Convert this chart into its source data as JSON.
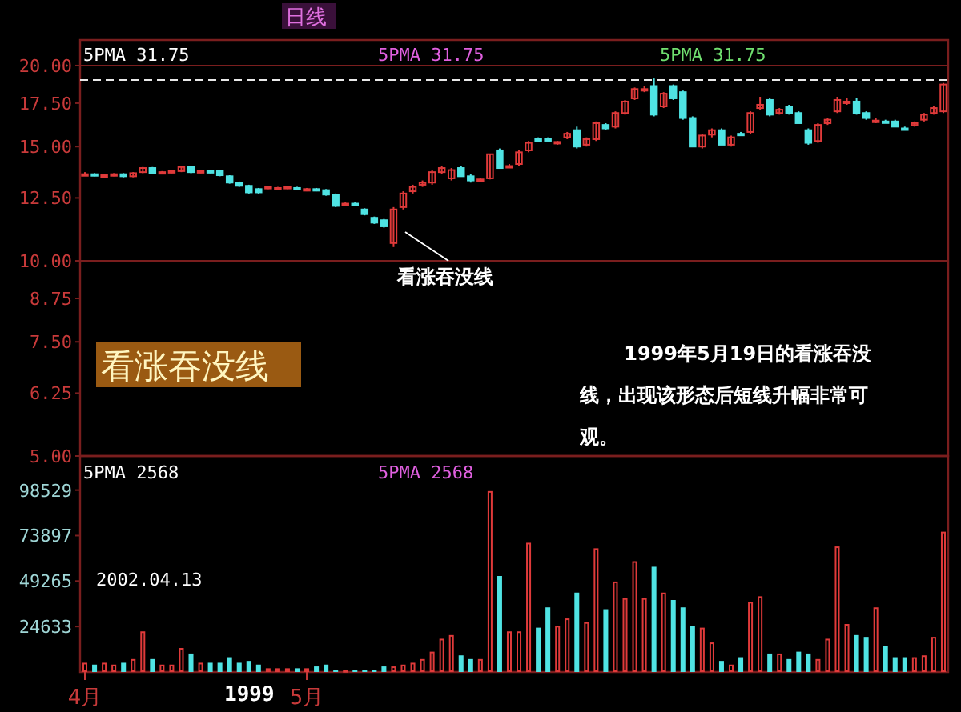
{
  "chart_data": [
    {
      "type": "candlestick",
      "title": "日线",
      "categories": [
        null,
        null,
        null,
        null,
        null,
        null,
        null,
        null,
        null,
        null,
        null,
        null,
        null,
        null,
        null,
        null,
        null,
        null,
        null,
        null,
        null,
        null,
        null,
        null,
        null,
        null,
        null,
        null,
        null,
        null,
        null,
        null,
        null,
        null,
        null,
        null,
        null,
        null,
        null,
        null,
        null,
        null,
        null,
        null,
        null,
        null,
        null,
        null,
        null,
        null,
        null,
        null,
        null,
        null,
        null,
        null,
        null,
        null,
        null,
        null,
        null,
        null,
        null,
        null,
        null,
        null,
        null,
        null,
        null,
        null,
        null,
        null,
        null,
        null,
        null,
        null,
        null,
        null,
        null,
        null,
        null,
        null,
        null,
        null,
        null,
        null,
        null,
        null,
        null,
        null
      ],
      "ohlc": [
        [
          13.6,
          13.7,
          13.55,
          13.6
        ],
        [
          13.6,
          13.65,
          13.5,
          13.55
        ],
        [
          13.55,
          13.6,
          13.5,
          13.55
        ],
        [
          13.55,
          13.65,
          13.5,
          13.6
        ],
        [
          13.6,
          13.65,
          13.45,
          13.5
        ],
        [
          13.5,
          13.7,
          13.45,
          13.65
        ],
        [
          13.7,
          13.95,
          13.65,
          13.9
        ],
        [
          13.9,
          13.95,
          13.6,
          13.65
        ],
        [
          13.65,
          13.75,
          13.6,
          13.7
        ],
        [
          13.7,
          13.8,
          13.65,
          13.75
        ],
        [
          13.75,
          14.0,
          13.7,
          13.95
        ],
        [
          13.95,
          14.0,
          13.65,
          13.7
        ],
        [
          13.7,
          13.8,
          13.65,
          13.75
        ],
        [
          13.75,
          13.8,
          13.65,
          13.7
        ],
        [
          13.75,
          13.8,
          13.5,
          13.55
        ],
        [
          13.5,
          13.55,
          13.15,
          13.2
        ],
        [
          13.2,
          13.25,
          13.0,
          13.05
        ],
        [
          13.05,
          13.1,
          12.7,
          12.75
        ],
        [
          12.9,
          12.95,
          12.7,
          12.75
        ],
        [
          12.95,
          13.0,
          12.9,
          13.0
        ],
        [
          12.95,
          13.0,
          12.9,
          12.95
        ],
        [
          12.95,
          13.05,
          12.9,
          13.0
        ],
        [
          12.95,
          13.0,
          12.85,
          12.9
        ],
        [
          12.85,
          12.95,
          12.8,
          12.9
        ],
        [
          12.9,
          12.95,
          12.8,
          12.85
        ],
        [
          12.85,
          12.9,
          12.6,
          12.65
        ],
        [
          12.65,
          12.7,
          12.1,
          12.15
        ],
        [
          12.2,
          12.3,
          12.15,
          12.25
        ],
        [
          12.25,
          12.3,
          12.15,
          12.2
        ],
        [
          12.0,
          12.05,
          11.75,
          11.8
        ],
        [
          11.65,
          11.7,
          11.4,
          11.45
        ],
        [
          11.55,
          11.6,
          11.25,
          11.3
        ],
        [
          10.65,
          12.1,
          10.5,
          12.0
        ],
        [
          12.1,
          12.8,
          12.0,
          12.7
        ],
        [
          12.8,
          13.1,
          12.7,
          13.0
        ],
        [
          13.1,
          13.3,
          13.0,
          13.2
        ],
        [
          13.2,
          13.8,
          13.1,
          13.7
        ],
        [
          13.7,
          14.0,
          13.6,
          13.9
        ],
        [
          13.4,
          13.9,
          13.3,
          13.8
        ],
        [
          13.9,
          14.0,
          13.5,
          13.5
        ],
        [
          13.5,
          13.6,
          13.2,
          13.3
        ],
        [
          13.35,
          13.4,
          13.3,
          13.35
        ],
        [
          13.4,
          14.6,
          13.35,
          14.6
        ],
        [
          14.8,
          14.9,
          13.9,
          13.9
        ],
        [
          14.0,
          14.1,
          13.9,
          14.0
        ],
        [
          14.1,
          14.8,
          14.0,
          14.7
        ],
        [
          14.8,
          15.3,
          14.7,
          15.2
        ],
        [
          15.4,
          15.5,
          15.3,
          15.3
        ],
        [
          15.4,
          15.5,
          15.3,
          15.35
        ],
        [
          15.2,
          15.3,
          15.1,
          15.25
        ],
        [
          15.5,
          15.8,
          15.4,
          15.7
        ],
        [
          15.9,
          16.1,
          14.9,
          15.0
        ],
        [
          15.1,
          15.5,
          15.0,
          15.4
        ],
        [
          15.4,
          16.4,
          15.3,
          16.3
        ],
        [
          16.2,
          16.3,
          15.9,
          16.0
        ],
        [
          16.1,
          17.0,
          16.0,
          16.9
        ],
        [
          16.9,
          17.7,
          16.8,
          17.6
        ],
        [
          17.8,
          18.5,
          17.7,
          18.4
        ],
        [
          18.3,
          18.6,
          18.2,
          18.4
        ],
        [
          18.6,
          19.1,
          16.7,
          16.8
        ],
        [
          17.3,
          18.2,
          17.2,
          18.1
        ],
        [
          18.6,
          18.7,
          17.7,
          17.8
        ],
        [
          18.2,
          18.3,
          16.5,
          16.6
        ],
        [
          16.6,
          16.7,
          15.0,
          15.0
        ],
        [
          15.0,
          15.7,
          14.9,
          15.6
        ],
        [
          15.65,
          16.0,
          15.5,
          15.9
        ],
        [
          15.9,
          16.0,
          15.1,
          15.1
        ],
        [
          15.1,
          15.6,
          15.0,
          15.5
        ],
        [
          15.7,
          15.8,
          15.6,
          15.65
        ],
        [
          15.8,
          17.0,
          15.7,
          16.9
        ],
        [
          17.2,
          17.9,
          17.1,
          17.4
        ],
        [
          17.7,
          17.8,
          16.7,
          16.8
        ],
        [
          16.9,
          17.2,
          16.8,
          17.1
        ],
        [
          17.3,
          17.4,
          16.8,
          16.9
        ],
        [
          16.9,
          17.0,
          16.3,
          16.3
        ],
        [
          15.9,
          16.0,
          15.1,
          15.2
        ],
        [
          15.3,
          16.3,
          15.2,
          16.2
        ],
        [
          16.3,
          16.6,
          16.2,
          16.5
        ],
        [
          17.0,
          17.9,
          16.9,
          17.7
        ],
        [
          17.5,
          17.8,
          17.4,
          17.6
        ],
        [
          17.6,
          17.8,
          16.8,
          16.9
        ],
        [
          16.9,
          17.0,
          16.5,
          16.6
        ],
        [
          16.4,
          16.6,
          16.3,
          16.45
        ],
        [
          16.4,
          16.5,
          16.3,
          16.35
        ],
        [
          16.4,
          16.5,
          16.1,
          16.1
        ],
        [
          16.0,
          16.1,
          15.9,
          15.95
        ],
        [
          16.2,
          16.4,
          16.1,
          16.3
        ],
        [
          16.5,
          16.9,
          16.4,
          16.8
        ],
        [
          16.9,
          17.3,
          16.8,
          17.2
        ],
        [
          17.0,
          18.8,
          16.9,
          18.7
        ]
      ],
      "colors": [
        "#e03a3a",
        "#4fe3e3",
        "#e03a3a",
        "#e03a3a",
        "#4fe3e3",
        "#e03a3a",
        "#e03a3a",
        "#4fe3e3",
        "#e03a3a",
        "#e03a3a",
        "#e03a3a",
        "#4fe3e3",
        "#e03a3a",
        "#4fe3e3",
        "#4fe3e3",
        "#4fe3e3",
        "#4fe3e3",
        "#4fe3e3",
        "#4fe3e3",
        "#e03a3a",
        "#e03a3a",
        "#e03a3a",
        "#4fe3e3",
        "#e03a3a",
        "#4fe3e3",
        "#4fe3e3",
        "#4fe3e3",
        "#e03a3a",
        "#4fe3e3",
        "#4fe3e3",
        "#4fe3e3",
        "#4fe3e3",
        "#e03a3a",
        "#e03a3a",
        "#e03a3a",
        "#e03a3a",
        "#e03a3a",
        "#e03a3a",
        "#e03a3a",
        "#4fe3e3",
        "#4fe3e3",
        "#e03a3a",
        "#e03a3a",
        "#4fe3e3",
        "#e03a3a",
        "#e03a3a",
        "#e03a3a",
        "#4fe3e3",
        "#4fe3e3",
        "#e03a3a",
        "#e03a3a",
        "#4fe3e3",
        "#e03a3a",
        "#e03a3a",
        "#4fe3e3",
        "#e03a3a",
        "#e03a3a",
        "#e03a3a",
        "#e03a3a",
        "#4fe3e3",
        "#e03a3a",
        "#4fe3e3",
        "#4fe3e3",
        "#4fe3e3",
        "#e03a3a",
        "#e03a3a",
        "#4fe3e3",
        "#e03a3a",
        "#4fe3e3",
        "#e03a3a",
        "#e03a3a",
        "#4fe3e3",
        "#e03a3a",
        "#4fe3e3",
        "#4fe3e3",
        "#4fe3e3",
        "#e03a3a",
        "#e03a3a",
        "#e03a3a",
        "#e03a3a",
        "#4fe3e3",
        "#4fe3e3",
        "#e03a3a",
        "#4fe3e3",
        "#4fe3e3",
        "#4fe3e3",
        "#e03a3a",
        "#e03a3a",
        "#e03a3a",
        "#e03a3a"
      ],
      "log": true,
      "ylim": [
        5,
        21.9
      ],
      "yticks": [
        {
          "value": 5,
          "label": "5.00"
        },
        {
          "value": 6.25,
          "label": "6.25"
        },
        {
          "value": 7.5,
          "label": "7.50"
        },
        {
          "value": 8.75,
          "label": "8.75"
        },
        {
          "value": 10,
          "label": "10.00"
        },
        {
          "value": 12.5,
          "label": "12.50"
        },
        {
          "value": 15,
          "label": "15.00"
        },
        {
          "value": 17.5,
          "label": "17.50"
        },
        {
          "value": 20,
          "label": "20.00"
        }
      ],
      "tick_labels": "y",
      "ref_lines": [
        {
          "axis": "y",
          "value": 20,
          "color": "#7a1e1e",
          "line_style": "solid"
        },
        {
          "axis": "y",
          "value": 10,
          "color": "#7a1e1e",
          "line_style": "solid"
        },
        {
          "axis": "y",
          "value": 19.0,
          "color": "#e8e8e8",
          "line_style": "dashed"
        }
      ],
      "annotations": [
        "5PMA 31.75",
        "5PMA 31.75",
        "5PMA 31.75",
        "看涨吞没线",
        "看涨吞没线",
        "1999年5月19日的看涨吞没线，出现该形态后短线升幅非常可观。"
      ]
    },
    {
      "type": "bar",
      "categories": [
        "4月",
        null,
        null,
        null,
        null,
        null,
        null,
        null,
        null,
        null,
        null,
        null,
        null,
        null,
        null,
        null,
        null,
        null,
        null,
        null,
        null,
        null,
        null,
        "5月",
        null,
        null,
        null,
        null,
        null,
        null,
        null,
        null,
        null,
        null,
        null,
        null,
        null,
        null,
        null,
        null,
        null,
        null,
        null,
        null,
        null,
        null,
        null,
        null,
        null,
        null,
        null,
        null,
        null,
        null,
        null,
        null,
        null,
        null,
        null,
        null,
        null,
        null,
        null,
        null,
        null,
        null,
        null,
        null,
        null,
        null,
        null,
        null,
        null,
        null,
        null,
        null,
        null,
        null,
        null,
        null,
        null,
        null,
        null,
        null,
        null,
        null,
        null,
        null,
        null,
        null
      ],
      "values": [
        5000,
        4000,
        5000,
        4000,
        5000,
        7000,
        22000,
        7000,
        4000,
        4000,
        13000,
        10000,
        5000,
        5000,
        5000,
        8000,
        5000,
        6000,
        4000,
        2000,
        2000,
        2000,
        2000,
        2000,
        3000,
        4000,
        1000,
        1000,
        1000,
        1000,
        1000,
        3000,
        3000,
        4000,
        5000,
        7000,
        11000,
        18000,
        20000,
        9000,
        7000,
        7000,
        98000,
        52000,
        22000,
        22000,
        70000,
        24000,
        35000,
        25000,
        29000,
        43000,
        27000,
        67000,
        34000,
        49000,
        40000,
        60000,
        40000,
        57000,
        43000,
        39000,
        35000,
        25000,
        24000,
        16000,
        6000,
        4000,
        8000,
        38000,
        41000,
        10000,
        10000,
        7000,
        11000,
        10000,
        7000,
        18000,
        68000,
        26000,
        20000,
        19000,
        35000,
        14000,
        8000,
        8000,
        8000,
        9000,
        19000,
        76000
      ],
      "colors": [
        "#e03a3a",
        "#4fe3e3",
        "#e03a3a",
        "#e03a3a",
        "#4fe3e3",
        "#e03a3a",
        "#e03a3a",
        "#4fe3e3",
        "#e03a3a",
        "#e03a3a",
        "#e03a3a",
        "#4fe3e3",
        "#e03a3a",
        "#4fe3e3",
        "#4fe3e3",
        "#4fe3e3",
        "#4fe3e3",
        "#4fe3e3",
        "#4fe3e3",
        "#e03a3a",
        "#e03a3a",
        "#e03a3a",
        "#4fe3e3",
        "#e03a3a",
        "#4fe3e3",
        "#4fe3e3",
        "#4fe3e3",
        "#e03a3a",
        "#4fe3e3",
        "#4fe3e3",
        "#4fe3e3",
        "#4fe3e3",
        "#e03a3a",
        "#e03a3a",
        "#e03a3a",
        "#e03a3a",
        "#e03a3a",
        "#e03a3a",
        "#e03a3a",
        "#4fe3e3",
        "#4fe3e3",
        "#e03a3a",
        "#e03a3a",
        "#4fe3e3",
        "#e03a3a",
        "#e03a3a",
        "#e03a3a",
        "#4fe3e3",
        "#4fe3e3",
        "#e03a3a",
        "#e03a3a",
        "#4fe3e3",
        "#e03a3a",
        "#e03a3a",
        "#4fe3e3",
        "#e03a3a",
        "#e03a3a",
        "#e03a3a",
        "#e03a3a",
        "#4fe3e3",
        "#e03a3a",
        "#4fe3e3",
        "#4fe3e3",
        "#4fe3e3",
        "#e03a3a",
        "#e03a3a",
        "#4fe3e3",
        "#e03a3a",
        "#4fe3e3",
        "#e03a3a",
        "#e03a3a",
        "#4fe3e3",
        "#e03a3a",
        "#4fe3e3",
        "#4fe3e3",
        "#4fe3e3",
        "#e03a3a",
        "#e03a3a",
        "#e03a3a",
        "#e03a3a",
        "#4fe3e3",
        "#4fe3e3",
        "#e03a3a",
        "#4fe3e3",
        "#4fe3e3",
        "#4fe3e3",
        "#e03a3a",
        "#e03a3a",
        "#e03a3a",
        "#e03a3a"
      ],
      "ylim": [
        0,
        117000
      ],
      "yticks": [
        24633,
        49265,
        73897,
        98529
      ],
      "annotations": [
        "5PMA 2568",
        "5PMA 2568",
        "2002.04.13",
        "1999"
      ]
    }
  ]
}
